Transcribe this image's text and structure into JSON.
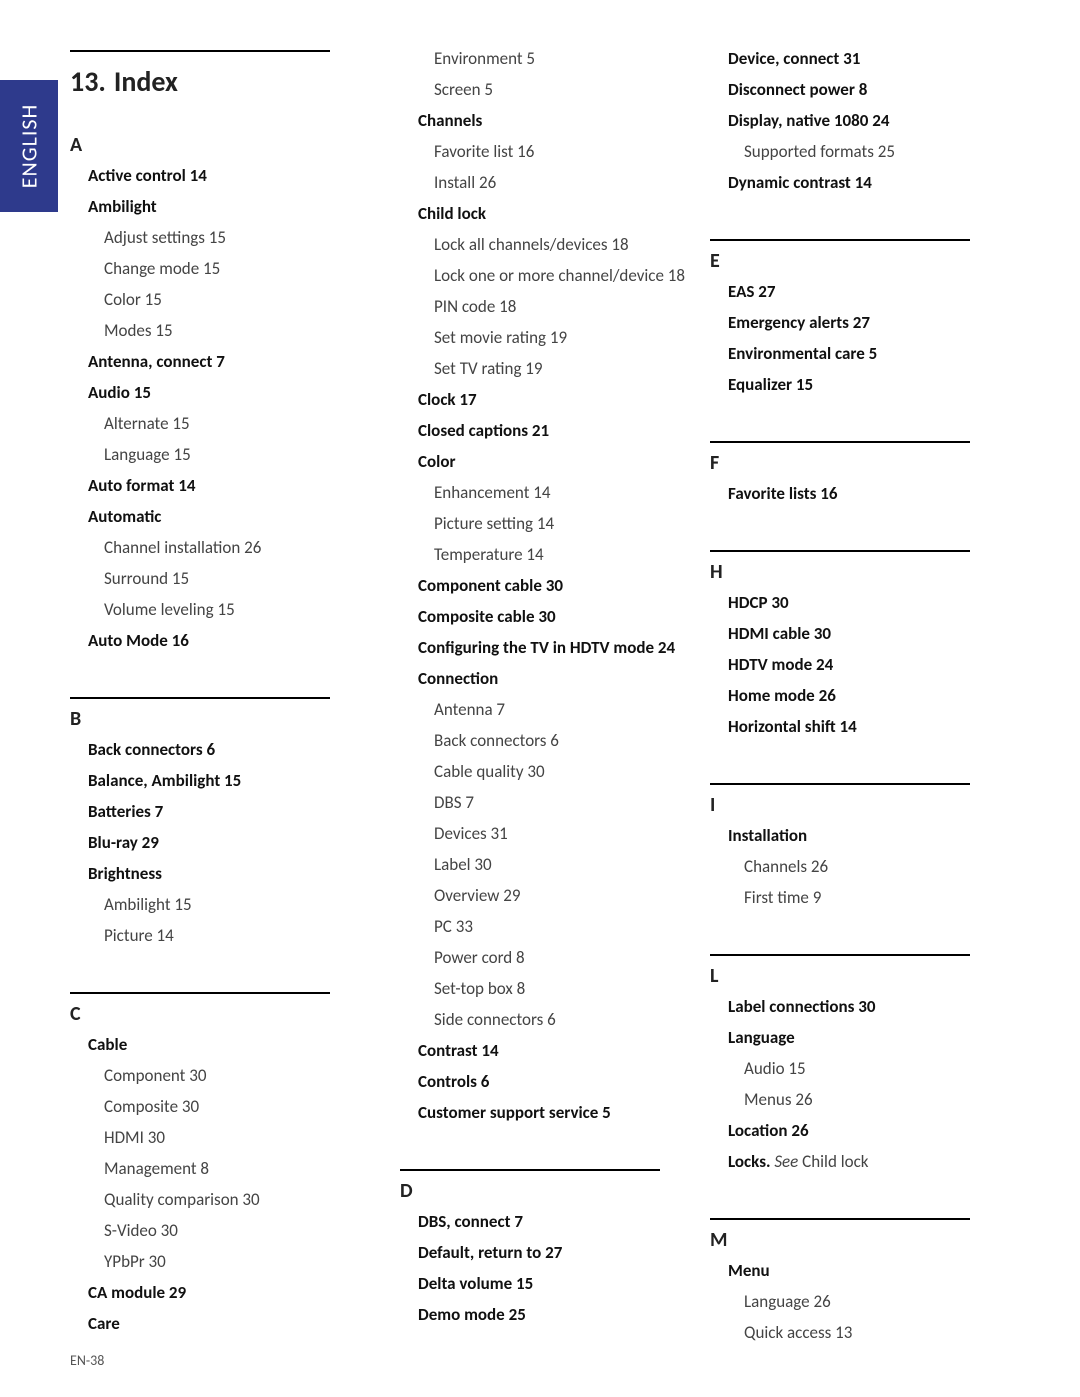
{
  "lang_tab": "ENGLISH",
  "footer": "EN-38",
  "title_num": "13.",
  "title_text": "Index",
  "col1": [
    {
      "type": "rule"
    },
    {
      "type": "title"
    },
    {
      "type": "letter",
      "text": "A"
    },
    {
      "type": "entry",
      "indent": 1,
      "bold": true,
      "label": "Active control",
      "page": "14"
    },
    {
      "type": "entry",
      "indent": 1,
      "bold": true,
      "label": "Ambilight",
      "page": ""
    },
    {
      "type": "entry",
      "indent": 2,
      "bold": false,
      "label": "Adjust settings",
      "page": "15"
    },
    {
      "type": "entry",
      "indent": 2,
      "bold": false,
      "label": "Change mode",
      "page": "15"
    },
    {
      "type": "entry",
      "indent": 2,
      "bold": false,
      "label": "Color",
      "page": "15"
    },
    {
      "type": "entry",
      "indent": 2,
      "bold": false,
      "label": "Modes",
      "page": "15"
    },
    {
      "type": "entry",
      "indent": 1,
      "bold": true,
      "label": "Antenna, connect",
      "page": "7"
    },
    {
      "type": "entry",
      "indent": 1,
      "bold": true,
      "label": "Audio",
      "page": "15"
    },
    {
      "type": "entry",
      "indent": 2,
      "bold": false,
      "label": "Alternate",
      "page": "15"
    },
    {
      "type": "entry",
      "indent": 2,
      "bold": false,
      "label": "Language",
      "page": "15"
    },
    {
      "type": "entry",
      "indent": 1,
      "bold": true,
      "label": "Auto format",
      "page": "14"
    },
    {
      "type": "entry",
      "indent": 1,
      "bold": true,
      "label": "Automatic",
      "page": ""
    },
    {
      "type": "entry",
      "indent": 2,
      "bold": false,
      "label": "Channel installation",
      "page": "26"
    },
    {
      "type": "entry",
      "indent": 2,
      "bold": false,
      "label": "Surround",
      "page": "15"
    },
    {
      "type": "entry",
      "indent": 2,
      "bold": false,
      "label": "Volume leveling",
      "page": "15"
    },
    {
      "type": "entry",
      "indent": 1,
      "bold": true,
      "label": "Auto Mode",
      "page": "16"
    },
    {
      "type": "gap"
    },
    {
      "type": "rule"
    },
    {
      "type": "letter",
      "text": "B"
    },
    {
      "type": "entry",
      "indent": 1,
      "bold": true,
      "label": "Back connectors",
      "page": "6"
    },
    {
      "type": "entry",
      "indent": 1,
      "bold": true,
      "label": "Balance, Ambilight",
      "page": "15"
    },
    {
      "type": "entry",
      "indent": 1,
      "bold": true,
      "label": "Batteries",
      "page": "7"
    },
    {
      "type": "entry",
      "indent": 1,
      "bold": true,
      "label": "Blu-ray",
      "page": "29"
    },
    {
      "type": "entry",
      "indent": 1,
      "bold": true,
      "label": "Brightness",
      "page": ""
    },
    {
      "type": "entry",
      "indent": 2,
      "bold": false,
      "label": "Ambilight",
      "page": "15"
    },
    {
      "type": "entry",
      "indent": 2,
      "bold": false,
      "label": "Picture",
      "page": "14"
    },
    {
      "type": "gap"
    },
    {
      "type": "rule"
    },
    {
      "type": "letter",
      "text": "C"
    },
    {
      "type": "entry",
      "indent": 1,
      "bold": true,
      "label": "Cable",
      "page": ""
    },
    {
      "type": "entry",
      "indent": 2,
      "bold": false,
      "label": "Component",
      "page": "30"
    },
    {
      "type": "entry",
      "indent": 2,
      "bold": false,
      "label": "Composite",
      "page": "30"
    },
    {
      "type": "entry",
      "indent": 2,
      "bold": false,
      "label": "HDMI",
      "page": "30"
    },
    {
      "type": "entry",
      "indent": 2,
      "bold": false,
      "label": "Management",
      "page": "8"
    },
    {
      "type": "entry",
      "indent": 2,
      "bold": false,
      "label": "Quality comparison",
      "page": "30"
    },
    {
      "type": "entry",
      "indent": 2,
      "bold": false,
      "label": "S-Video",
      "page": "30"
    },
    {
      "type": "entry",
      "indent": 2,
      "bold": false,
      "label": "YPbPr",
      "page": "30"
    },
    {
      "type": "entry",
      "indent": 1,
      "bold": true,
      "label": "CA module",
      "page": "29"
    },
    {
      "type": "entry",
      "indent": 1,
      "bold": true,
      "label": "Care",
      "page": ""
    }
  ],
  "col2": [
    {
      "type": "entry",
      "indent": 2,
      "bold": false,
      "label": "Environment",
      "page": "5"
    },
    {
      "type": "entry",
      "indent": 2,
      "bold": false,
      "label": "Screen",
      "page": "5"
    },
    {
      "type": "entry",
      "indent": 1,
      "bold": true,
      "label": "Channels",
      "page": ""
    },
    {
      "type": "entry",
      "indent": 2,
      "bold": false,
      "label": "Favorite list",
      "page": "16"
    },
    {
      "type": "entry",
      "indent": 2,
      "bold": false,
      "label": "Install",
      "page": "26"
    },
    {
      "type": "entry",
      "indent": 1,
      "bold": true,
      "label": "Child lock",
      "page": ""
    },
    {
      "type": "entry",
      "indent": 2,
      "bold": false,
      "label": "Lock all channels/devices",
      "page": "18"
    },
    {
      "type": "entry",
      "indent": 2,
      "bold": false,
      "label": "Lock one or more channel/device",
      "page": "18"
    },
    {
      "type": "entry",
      "indent": 2,
      "bold": false,
      "label": "PIN code",
      "page": "18"
    },
    {
      "type": "entry",
      "indent": 2,
      "bold": false,
      "label": "Set movie rating",
      "page": "19"
    },
    {
      "type": "entry",
      "indent": 2,
      "bold": false,
      "label": "Set TV rating",
      "page": "19"
    },
    {
      "type": "entry",
      "indent": 1,
      "bold": true,
      "label": "Clock",
      "page": "17"
    },
    {
      "type": "entry",
      "indent": 1,
      "bold": true,
      "label": "Closed captions",
      "page": "21"
    },
    {
      "type": "entry",
      "indent": 1,
      "bold": true,
      "label": "Color",
      "page": ""
    },
    {
      "type": "entry",
      "indent": 2,
      "bold": false,
      "label": "Enhancement",
      "page": "14"
    },
    {
      "type": "entry",
      "indent": 2,
      "bold": false,
      "label": "Picture setting",
      "page": "14"
    },
    {
      "type": "entry",
      "indent": 2,
      "bold": false,
      "label": "Temperature",
      "page": "14"
    },
    {
      "type": "entry",
      "indent": 1,
      "bold": true,
      "label": "Component cable",
      "page": "30"
    },
    {
      "type": "entry",
      "indent": 1,
      "bold": true,
      "label": "Composite cable",
      "page": "30"
    },
    {
      "type": "entry",
      "indent": 1,
      "bold": true,
      "label": "Configuring the TV in HDTV mode",
      "page": "24"
    },
    {
      "type": "entry",
      "indent": 1,
      "bold": true,
      "label": "Connection",
      "page": ""
    },
    {
      "type": "entry",
      "indent": 2,
      "bold": false,
      "label": "Antenna",
      "page": "7"
    },
    {
      "type": "entry",
      "indent": 2,
      "bold": false,
      "label": "Back connectors",
      "page": "6"
    },
    {
      "type": "entry",
      "indent": 2,
      "bold": false,
      "label": "Cable quality",
      "page": "30"
    },
    {
      "type": "entry",
      "indent": 2,
      "bold": false,
      "label": "DBS",
      "page": "7"
    },
    {
      "type": "entry",
      "indent": 2,
      "bold": false,
      "label": "Devices",
      "page": "31"
    },
    {
      "type": "entry",
      "indent": 2,
      "bold": false,
      "label": "Label",
      "page": "30"
    },
    {
      "type": "entry",
      "indent": 2,
      "bold": false,
      "label": "Overview",
      "page": "29"
    },
    {
      "type": "entry",
      "indent": 2,
      "bold": false,
      "label": "PC",
      "page": "33"
    },
    {
      "type": "entry",
      "indent": 2,
      "bold": false,
      "label": "Power cord",
      "page": "8"
    },
    {
      "type": "entry",
      "indent": 2,
      "bold": false,
      "label": "Set-top box",
      "page": "8"
    },
    {
      "type": "entry",
      "indent": 2,
      "bold": false,
      "label": "Side connectors",
      "page": "6"
    },
    {
      "type": "entry",
      "indent": 1,
      "bold": true,
      "label": "Contrast",
      "page": "14"
    },
    {
      "type": "entry",
      "indent": 1,
      "bold": true,
      "label": "Controls",
      "page": "6"
    },
    {
      "type": "entry",
      "indent": 1,
      "bold": true,
      "label": "Customer support service",
      "page": "5"
    },
    {
      "type": "gap"
    },
    {
      "type": "rule"
    },
    {
      "type": "letter",
      "text": "D"
    },
    {
      "type": "entry",
      "indent": 1,
      "bold": true,
      "label": "DBS, connect",
      "page": "7"
    },
    {
      "type": "entry",
      "indent": 1,
      "bold": true,
      "label": "Default, return to",
      "page": "27"
    },
    {
      "type": "entry",
      "indent": 1,
      "bold": true,
      "label": "Delta volume",
      "page": "15"
    },
    {
      "type": "entry",
      "indent": 1,
      "bold": true,
      "label": "Demo mode",
      "page": "25"
    }
  ],
  "col3": [
    {
      "type": "entry",
      "indent": 1,
      "bold": true,
      "label": "Device, connect",
      "page": "31"
    },
    {
      "type": "entry",
      "indent": 1,
      "bold": true,
      "label": "Disconnect power",
      "page": "8"
    },
    {
      "type": "entry",
      "indent": 1,
      "bold": true,
      "label": "Display, native 1080",
      "page": "24"
    },
    {
      "type": "entry",
      "indent": 2,
      "bold": false,
      "label": "Supported formats",
      "page": "25"
    },
    {
      "type": "entry",
      "indent": 1,
      "bold": true,
      "label": "Dynamic contrast",
      "page": "14"
    },
    {
      "type": "gap"
    },
    {
      "type": "rule"
    },
    {
      "type": "letter",
      "text": "E"
    },
    {
      "type": "entry",
      "indent": 1,
      "bold": true,
      "label": "EAS",
      "page": "27"
    },
    {
      "type": "entry",
      "indent": 1,
      "bold": true,
      "label": "Emergency alerts",
      "page": "27"
    },
    {
      "type": "entry",
      "indent": 1,
      "bold": true,
      "label": "Environmental care",
      "page": "5"
    },
    {
      "type": "entry",
      "indent": 1,
      "bold": true,
      "label": "Equalizer",
      "page": "15"
    },
    {
      "type": "gap"
    },
    {
      "type": "rule"
    },
    {
      "type": "letter",
      "text": "F"
    },
    {
      "type": "entry",
      "indent": 1,
      "bold": true,
      "label": "Favorite lists",
      "page": "16"
    },
    {
      "type": "gap"
    },
    {
      "type": "rule"
    },
    {
      "type": "letter",
      "text": "H"
    },
    {
      "type": "entry",
      "indent": 1,
      "bold": true,
      "label": "HDCP",
      "page": "30"
    },
    {
      "type": "entry",
      "indent": 1,
      "bold": true,
      "label": "HDMI cable",
      "page": "30"
    },
    {
      "type": "entry",
      "indent": 1,
      "bold": true,
      "label": "HDTV mode",
      "page": "24"
    },
    {
      "type": "entry",
      "indent": 1,
      "bold": true,
      "label": "Home mode",
      "page": "26"
    },
    {
      "type": "entry",
      "indent": 1,
      "bold": true,
      "label": "Horizontal shift",
      "page": "14"
    },
    {
      "type": "gap"
    },
    {
      "type": "rule"
    },
    {
      "type": "letter",
      "text": "I"
    },
    {
      "type": "entry",
      "indent": 1,
      "bold": true,
      "label": "Installation",
      "page": ""
    },
    {
      "type": "entry",
      "indent": 2,
      "bold": false,
      "label": "Channels",
      "page": "26"
    },
    {
      "type": "entry",
      "indent": 2,
      "bold": false,
      "label": "First time",
      "page": "9"
    },
    {
      "type": "gap"
    },
    {
      "type": "rule"
    },
    {
      "type": "letter",
      "text": "L"
    },
    {
      "type": "entry",
      "indent": 1,
      "bold": true,
      "label": "Label connections",
      "page": "30"
    },
    {
      "type": "entry",
      "indent": 1,
      "bold": true,
      "label": "Language",
      "page": ""
    },
    {
      "type": "entry",
      "indent": 2,
      "bold": false,
      "label": "Audio",
      "page": "15"
    },
    {
      "type": "entry",
      "indent": 2,
      "bold": false,
      "label": "Menus",
      "page": "26"
    },
    {
      "type": "entry",
      "indent": 1,
      "bold": true,
      "label": "Location",
      "page": "26"
    },
    {
      "type": "locks",
      "indent": 1,
      "bold": true,
      "label": "Locks.",
      "see": "See",
      "ref": "Child lock"
    },
    {
      "type": "gap"
    },
    {
      "type": "rule"
    },
    {
      "type": "letter",
      "text": "M"
    },
    {
      "type": "entry",
      "indent": 1,
      "bold": true,
      "label": "Menu",
      "page": ""
    },
    {
      "type": "entry",
      "indent": 2,
      "bold": false,
      "label": "Language",
      "page": "26"
    },
    {
      "type": "entry",
      "indent": 2,
      "bold": false,
      "label": "Quick access",
      "page": "13"
    }
  ]
}
